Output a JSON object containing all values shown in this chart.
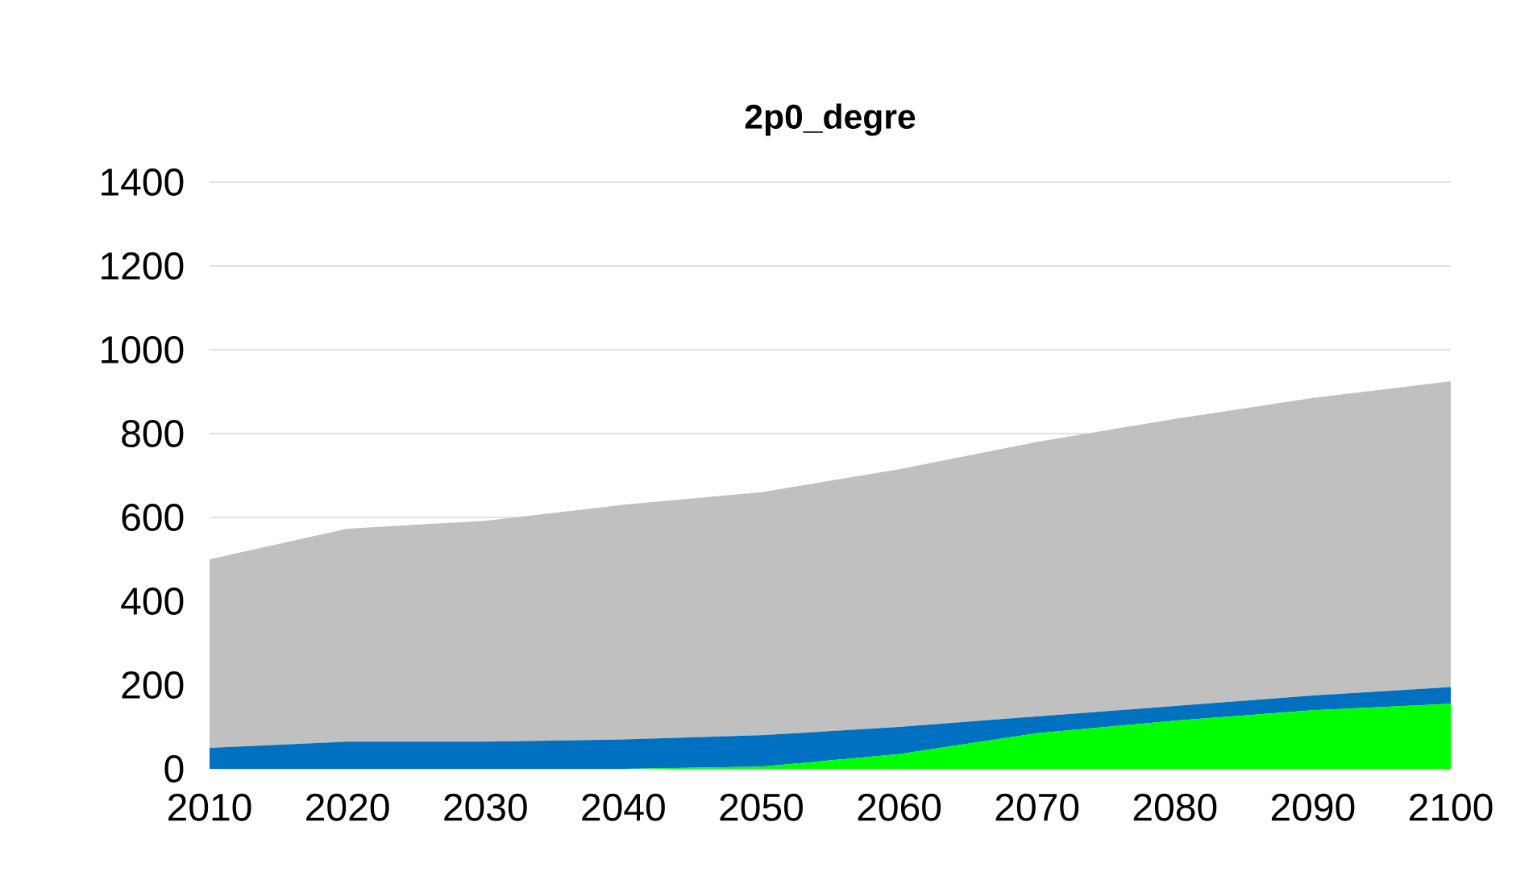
{
  "chart_data": {
    "type": "area",
    "title": "2p0_degre",
    "stacked": true,
    "x": [
      2010,
      2020,
      2030,
      2040,
      2050,
      2060,
      2070,
      2080,
      2090,
      2100
    ],
    "xlim": [
      2010,
      2100
    ],
    "xticks": [
      2010,
      2020,
      2030,
      2040,
      2050,
      2060,
      2070,
      2080,
      2090,
      2100
    ],
    "ylim": [
      0,
      1400
    ],
    "yticks": [
      0,
      200,
      400,
      600,
      800,
      1000,
      1200,
      1400
    ],
    "grid": "y",
    "series": [
      {
        "color": "#00ff00",
        "values": [
          0,
          0,
          0,
          0,
          5,
          35,
          85,
          115,
          140,
          155
        ]
      },
      {
        "color": "#0070c0",
        "values": [
          50,
          65,
          65,
          70,
          75,
          65,
          40,
          35,
          35,
          40
        ]
      },
      {
        "color": "#c0c0c0",
        "values": [
          450,
          508,
          527,
          560,
          580,
          615,
          655,
          685,
          710,
          730
        ]
      }
    ]
  }
}
